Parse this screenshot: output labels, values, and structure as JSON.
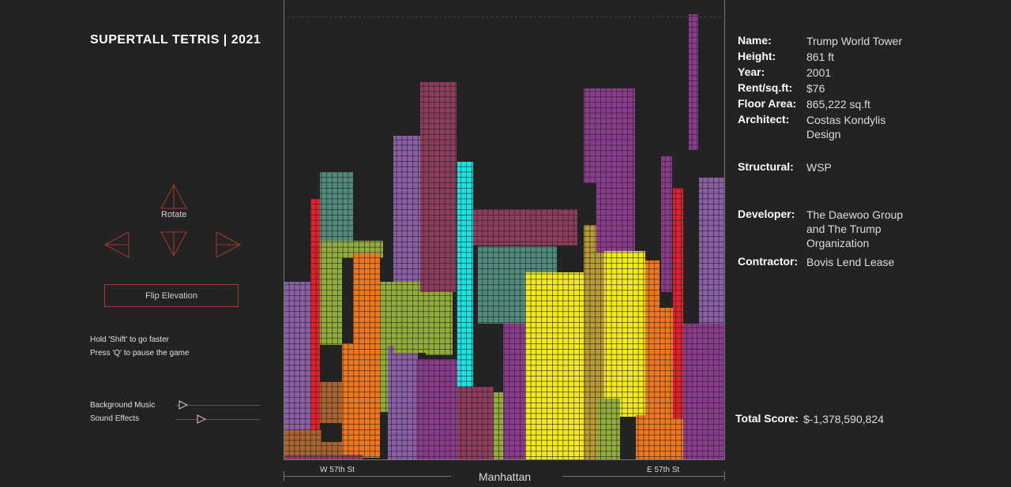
{
  "title": "SUPERTALL TETRIS | 2021",
  "controls": {
    "rotate_label": "Rotate",
    "flip_label": "Flip Elevation",
    "icons": [
      "triangle-up-icon",
      "triangle-left-icon",
      "triangle-down-icon",
      "triangle-right-icon"
    ]
  },
  "hints": {
    "faster": "Hold 'Shift' to go faster",
    "pause": "Press 'Q' to pause the game"
  },
  "audio": {
    "music_label": "Background Music",
    "effects_label": "Sound Effects"
  },
  "info": {
    "name_key": "Name:",
    "name": "Trump World Tower",
    "height_key": "Height:",
    "height": "861 ft",
    "year_key": "Year:",
    "year": "2001",
    "rent_key": "Rent/sq.ft:",
    "rent": "$76",
    "area_key": "Floor Area:",
    "area": "865,222 sq.ft",
    "architect_key": "Architect:",
    "architect": "Costas Kondylis Design",
    "structural_key": "Structural:",
    "structural": "WSP",
    "developer_key": "Developer:",
    "developer": "The Daewoo Group and The Trump Organization",
    "contractor_key": "Contractor:",
    "contractor": "Bovis Lend Lease"
  },
  "score": {
    "label": "Total Score:",
    "value": "$-1,378,590,824"
  },
  "streets": {
    "west": "W 57th St",
    "center": "Manhattan",
    "east": "E 57th St"
  },
  "colors": {
    "background": "#232323",
    "accent": "#a8362f",
    "purple": "#8a5fa6",
    "red": "#e0202a",
    "teal": "#4f8a7c",
    "olive": "#93ad3a",
    "orange": "#f07818",
    "maroon": "#8e3c5c",
    "cyan": "#14e6e6",
    "yellow": "#f2ea1c",
    "magenta": "#8a3c8c",
    "gold": "#ba9c32",
    "brown": "#a8642e",
    "rose": "#9a3c60"
  }
}
